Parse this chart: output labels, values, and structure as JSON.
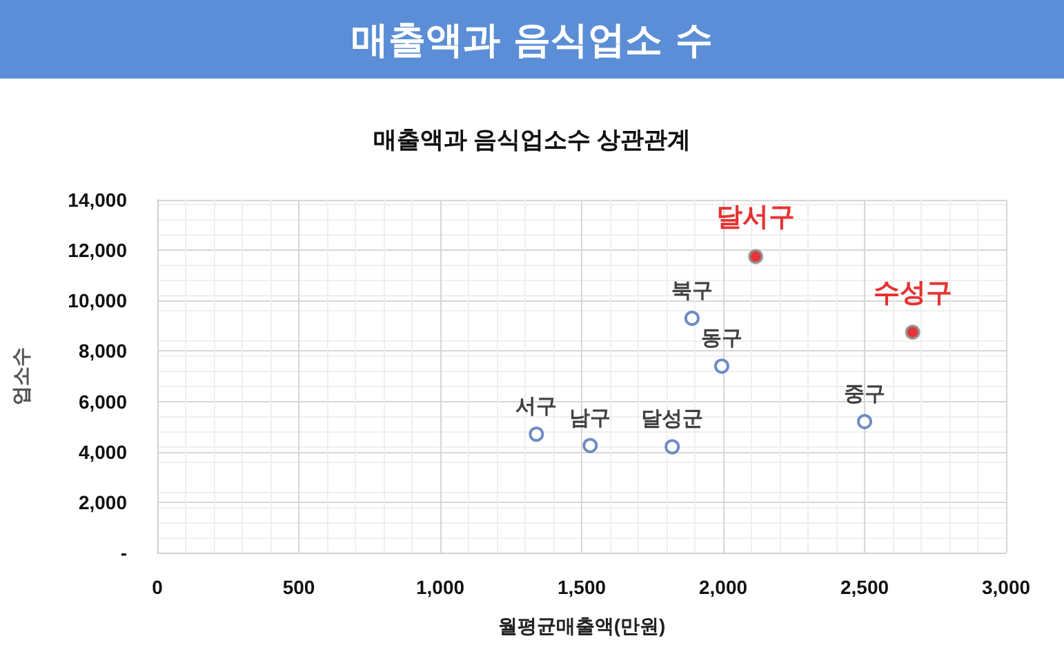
{
  "chart_data": {
    "type": "scatter",
    "title": "매출액과 음식업소 수",
    "subtitle": "매출액과 음식업소수 상관관계",
    "xlabel": "월평균매출액(만원)",
    "ylabel": "업소수",
    "series": [
      {
        "color": "#4a6fb5",
        "x": [
          1340,
          1530,
          1820,
          1890,
          1995,
          2500
        ],
        "values": [
          4700,
          4250,
          4200,
          9300,
          7400,
          5200
        ]
      },
      {
        "color": "#e00000",
        "x": [
          2115,
          2670
        ],
        "values": [
          11750,
          8750
        ]
      }
    ],
    "annotations": [
      {
        "text": "서구",
        "x": 1340,
        "y": 4700
      },
      {
        "text": "남구",
        "x": 1530,
        "y": 4250
      },
      {
        "text": "달성군",
        "x": 1820,
        "y": 4200
      },
      {
        "text": "북구",
        "x": 1890,
        "y": 9300
      },
      {
        "text": "동구",
        "x": 1995,
        "y": 7400
      },
      {
        "text": "중구",
        "x": 2500,
        "y": 5200
      },
      {
        "text": "달서구",
        "x": 2115,
        "y": 11750
      },
      {
        "text": "수성구",
        "x": 2670,
        "y": 8750
      }
    ],
    "xlim": [
      0,
      3000
    ],
    "xticks": [
      0,
      500,
      {
        "value": 1000,
        "label": "1,000"
      },
      {
        "value": 1500,
        "label": "1,500"
      },
      {
        "value": 2000,
        "label": "2,000"
      },
      {
        "value": 2500,
        "label": "2,500"
      },
      {
        "value": 3000,
        "label": "3,000"
      }
    ],
    "ylim": [
      0,
      14000
    ],
    "yticks": [
      {
        "value": 0,
        "label": "-"
      },
      {
        "value": 2000,
        "label": "2,000"
      },
      {
        "value": 4000,
        "label": "4,000"
      },
      {
        "value": 6000,
        "label": "6,000"
      },
      {
        "value": 8000,
        "label": "8,000"
      },
      {
        "value": 10000,
        "label": "10,000"
      },
      {
        "value": 12000,
        "label": "12,000"
      },
      {
        "value": 14000,
        "label": "14,000"
      }
    ],
    "grid": true,
    "marker": "circle"
  }
}
